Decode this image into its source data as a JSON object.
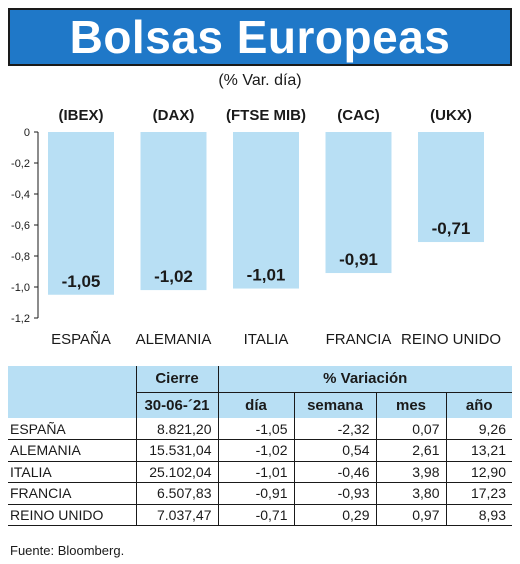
{
  "title": "Bolsas Europeas",
  "subtitle": "(% Var. día)",
  "chart_data": {
    "type": "bar",
    "tickers": [
      "(IBEX)",
      "(DAX)",
      "(FTSE MIB)",
      "(CAC)",
      "(UKX)"
    ],
    "categories": [
      "ESPAÑA",
      "ALEMANIA",
      "ITALIA",
      "FRANCIA",
      "REINO UNIDO"
    ],
    "values": [
      -1.05,
      -1.02,
      -1.01,
      -0.91,
      -0.71
    ],
    "value_labels": [
      "-1,05",
      "-1,02",
      "-1,01",
      "-0,91",
      "-0,71"
    ],
    "ylim": [
      -1.2,
      0
    ],
    "yticks": [
      0,
      -0.2,
      -0.4,
      -0.6,
      -0.8,
      -1.0,
      -1.2
    ],
    "ytick_labels": [
      "0",
      "-0,2",
      "-0,4",
      "-0,6",
      "-0,8",
      "-1,0",
      "-1,2"
    ],
    "bar_color": "#b8dff4",
    "grid": false
  },
  "table": {
    "header_cierre": "Cierre",
    "header_date": "30-06-´21",
    "header_variacion": "% Variación",
    "header_dia": "día",
    "header_semana": "semana",
    "header_mes": "mes",
    "header_ano": "año",
    "rows": [
      {
        "name": "ESPAÑA",
        "cierre": "8.821,20",
        "dia": "-1,05",
        "semana": "-2,32",
        "mes": "0,07",
        "ano": "9,26"
      },
      {
        "name": "ALEMANIA",
        "cierre": "15.531,04",
        "dia": "-1,02",
        "semana": "0,54",
        "mes": "2,61",
        "ano": "13,21"
      },
      {
        "name": "ITALIA",
        "cierre": "25.102,04",
        "dia": "-1,01",
        "semana": "-0,46",
        "mes": "3,98",
        "ano": "12,90"
      },
      {
        "name": "FRANCIA",
        "cierre": "6.507,83",
        "dia": "-0,91",
        "semana": "-0,93",
        "mes": "3,80",
        "ano": "17,23"
      },
      {
        "name": "REINO UNIDO",
        "cierre": "7.037,47",
        "dia": "-0,71",
        "semana": "0,29",
        "mes": "0,97",
        "ano": "8,93"
      }
    ]
  },
  "source": "Fuente: Bloomberg.",
  "colors": {
    "title_bg": "#1f78c8",
    "header_bg": "#b8dff4"
  }
}
